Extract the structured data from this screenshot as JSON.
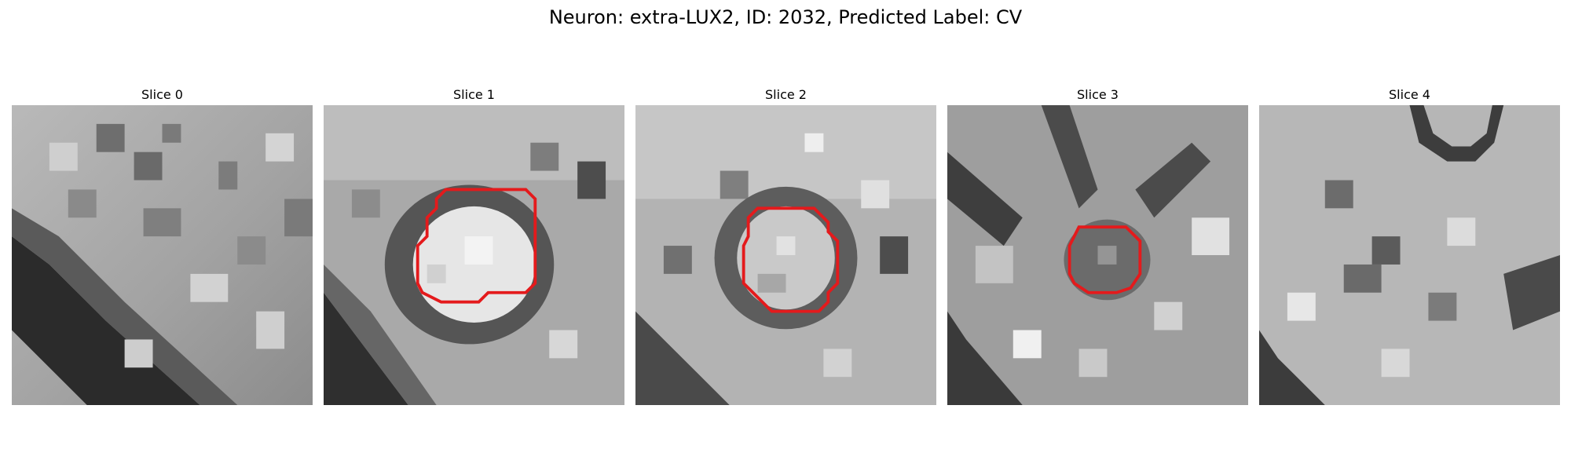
{
  "figure": {
    "title": "Neuron: extra-LUX2, ID: 2032, Predicted Label: CV"
  },
  "colors": {
    "contour": "#e41a1c",
    "background": "#ffffff"
  },
  "panels": [
    {
      "title": "Slice 0",
      "has_contour": false
    },
    {
      "title": "Slice 1",
      "has_contour": true
    },
    {
      "title": "Slice 2",
      "has_contour": true
    },
    {
      "title": "Slice 3",
      "has_contour": true
    },
    {
      "title": "Slice 4",
      "has_contour": false
    }
  ]
}
